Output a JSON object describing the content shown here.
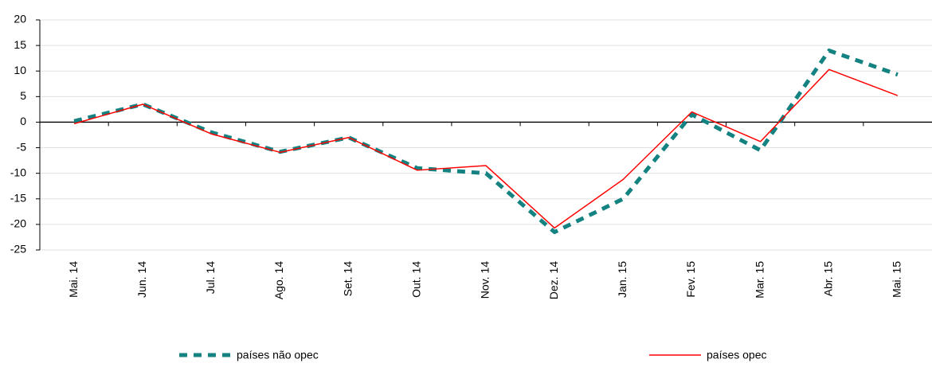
{
  "chart_data": {
    "type": "line",
    "categories": [
      "Mai. 14",
      "Jun. 14",
      "Jul. 14",
      "Ago. 14",
      "Set. 14",
      "Out. 14",
      "Nov. 14",
      "Dez. 14",
      "Jan. 15",
      "Fev. 15",
      "Mar. 15",
      "Abr. 15",
      "Mai. 15"
    ],
    "series": [
      {
        "name": "países não opec",
        "color": "#138280",
        "dashed": true,
        "values": [
          0.2,
          3.5,
          -2,
          -5.8,
          -3,
          -9,
          -10,
          -21.5,
          -15,
          1.5,
          -5.5,
          14,
          9.3
        ]
      },
      {
        "name": "países opec",
        "color": "#ff0000",
        "dashed": false,
        "values": [
          -0.3,
          3.5,
          -2.3,
          -5.9,
          -3,
          -9.4,
          -8.5,
          -20.7,
          -11.2,
          2,
          -3.8,
          10.3,
          5.2
        ]
      }
    ],
    "ylim": [
      -25,
      20
    ],
    "yticks": [
      -25,
      -20,
      -15,
      -10,
      -5,
      0,
      5,
      10,
      15,
      20
    ],
    "grid": true,
    "legend": "bottom"
  }
}
